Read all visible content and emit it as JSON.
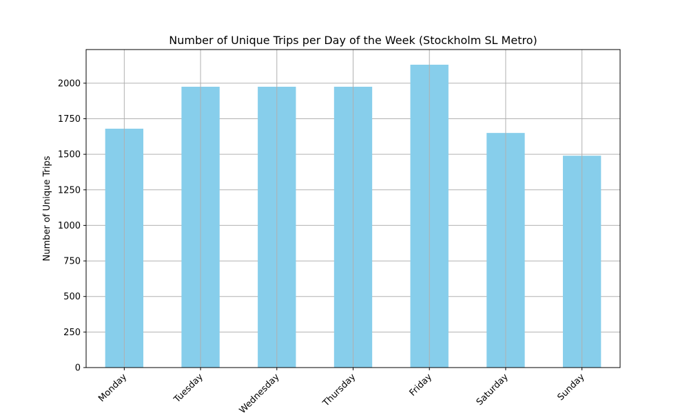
{
  "chart_data": {
    "type": "bar",
    "title": "Number of Unique Trips per Day of the Week (Stockholm SL Metro)",
    "xlabel": "",
    "ylabel": "Number of Unique Trips",
    "categories": [
      "Monday",
      "Tuesday",
      "Wednesday",
      "Thursday",
      "Friday",
      "Saturday",
      "Sunday"
    ],
    "values": [
      1680,
      1975,
      1975,
      1975,
      2130,
      1650,
      1490
    ],
    "ylim": [
      0,
      2236.5
    ],
    "yticks": [
      0,
      250,
      500,
      750,
      1000,
      1250,
      1500,
      1750,
      2000
    ],
    "ytick_labels": [
      "0",
      "250",
      "500",
      "750",
      "1000",
      "1250",
      "1500",
      "1750",
      "2000"
    ],
    "grid": true,
    "colors": {
      "bar": "#87CEEB",
      "grid": "#b0b0b0",
      "axis": "#000000"
    }
  }
}
